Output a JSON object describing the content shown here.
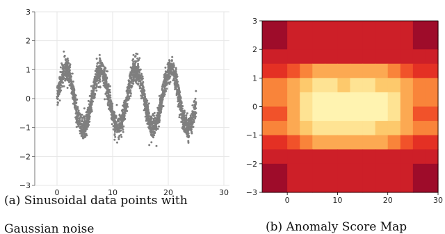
{
  "chart_data": [
    {
      "type": "scatter",
      "caption_lines": [
        "(a) Sinusoidal data points with",
        "Gaussian noise"
      ],
      "xlim": [
        -4,
        31
      ],
      "ylim": [
        -3,
        3
      ],
      "x_ticks": [
        0,
        10,
        20,
        30
      ],
      "y_ticks": [
        -3,
        -2,
        -1,
        0,
        1,
        2,
        3
      ],
      "grid": true,
      "point_color": "#7f7f7f",
      "series": [
        {
          "function": "sin",
          "x_range": [
            0,
            25
          ],
          "amplitude": 1,
          "noise_std": 0.2,
          "n_points": 2500
        }
      ]
    },
    {
      "type": "heatmap",
      "caption": "(b) Anomaly Score Map",
      "xlim": [
        -5,
        30
      ],
      "ylim": [
        -3,
        3
      ],
      "x_ticks": [
        0,
        10,
        20,
        30
      ],
      "y_ticks": [
        -3,
        -2,
        -1,
        0,
        1,
        2,
        3
      ],
      "colormap": [
        "#9e0c2a",
        "#cd1f28",
        "#e43024",
        "#f1522a",
        "#f9843a",
        "#fca952",
        "#fdc96c",
        "#fee393",
        "#fff3b0"
      ],
      "x_centers": [
        -3.75,
        -1.25,
        1.25,
        3.75,
        6.25,
        8.75,
        11.25,
        13.75,
        16.25,
        18.75,
        21.25,
        23.75,
        26.25,
        28.75
      ],
      "y_centers": [
        2.75,
        2.25,
        1.75,
        1.25,
        0.75,
        0.25,
        -0.25,
        -0.75,
        -1.25,
        -1.75,
        -2.25,
        -2.75
      ],
      "levels": [
        [
          0,
          0,
          1,
          1,
          1,
          1,
          1,
          1,
          1,
          1,
          1,
          1,
          0,
          0
        ],
        [
          0,
          0,
          1,
          1,
          1,
          1,
          1,
          1,
          1,
          1,
          1,
          1,
          0,
          0
        ],
        [
          1,
          1,
          1,
          1,
          1,
          1,
          1,
          1,
          1,
          1,
          1,
          1,
          1,
          1
        ],
        [
          2,
          2,
          3,
          4,
          5,
          5,
          5,
          5,
          5,
          5,
          4,
          3,
          2,
          2
        ],
        [
          4,
          4,
          5,
          6,
          7,
          7,
          6,
          7,
          7,
          6,
          6,
          5,
          4,
          4
        ],
        [
          4,
          4,
          5,
          7,
          8,
          8,
          8,
          8,
          8,
          8,
          7,
          5,
          4,
          4
        ],
        [
          3,
          3,
          5,
          7,
          8,
          8,
          8,
          8,
          8,
          8,
          7,
          5,
          3,
          3
        ],
        [
          4,
          4,
          5,
          6,
          7,
          7,
          7,
          7,
          7,
          6,
          6,
          5,
          4,
          4
        ],
        [
          2,
          2,
          3,
          4,
          5,
          5,
          5,
          5,
          5,
          5,
          4,
          3,
          2,
          2
        ],
        [
          1,
          1,
          1,
          1,
          1,
          1,
          1,
          1,
          1,
          1,
          1,
          1,
          1,
          1
        ],
        [
          0,
          0,
          1,
          1,
          1,
          1,
          1,
          1,
          1,
          1,
          1,
          1,
          0,
          0
        ],
        [
          0,
          0,
          1,
          1,
          1,
          1,
          1,
          1,
          1,
          1,
          1,
          1,
          0,
          0
        ]
      ]
    }
  ]
}
